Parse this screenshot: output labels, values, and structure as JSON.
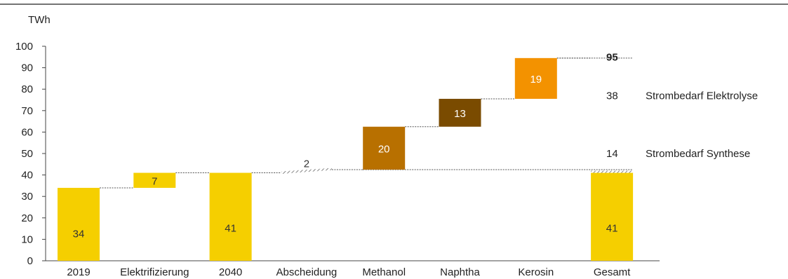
{
  "chart_data": {
    "type": "bar",
    "subtype": "waterfall",
    "title": "",
    "ylabel": "TWh",
    "xlabel": "",
    "ylim": [
      0,
      100
    ],
    "yticks": [
      0,
      10,
      20,
      30,
      40,
      50,
      60,
      70,
      80,
      90,
      100
    ],
    "grid": false,
    "categories": [
      "2019",
      "Elektrifizierung",
      "2040",
      "Abscheidung",
      "Methanol",
      "Naphtha",
      "Kerosin",
      "Gesamt"
    ],
    "bars": [
      {
        "category": "2019",
        "base": 0,
        "value": 34,
        "label": "34",
        "color": "#F5CF00",
        "label_color": "#333333"
      },
      {
        "category": "Elektrifizierung",
        "base": 34,
        "value": 7,
        "label": "7",
        "color": "#F5CF00",
        "label_color": "#333333"
      },
      {
        "category": "2040",
        "base": 0,
        "value": 41,
        "label": "41",
        "color": "#F5CF00",
        "label_color": "#333333"
      },
      {
        "category": "Abscheidung",
        "base": 41,
        "value": 2,
        "label": "2",
        "color": "hatched",
        "label_color": "#333333"
      },
      {
        "category": "Methanol",
        "base": 42.5,
        "value": 20,
        "label": "20",
        "color": "#B87000",
        "label_color": "#ffffff"
      },
      {
        "category": "Naphtha",
        "base": 62.5,
        "value": 13,
        "label": "13",
        "color": "#7A4B00",
        "label_color": "#ffffff"
      },
      {
        "category": "Kerosin",
        "base": 75.5,
        "value": 19,
        "label": "19",
        "color": "#F39200",
        "label_color": "#ffffff"
      },
      {
        "category": "Gesamt",
        "base": 0,
        "value": 41,
        "label": "41",
        "color": "#F5CF00",
        "label_color": "#333333",
        "hatch_top": 2
      }
    ],
    "side_annotations": [
      {
        "value": "95",
        "text": "",
        "bold": true,
        "y": 95
      },
      {
        "value": "38",
        "text": "Strombedarf Elektrolyse",
        "bold": false,
        "y": 77
      },
      {
        "value": "14",
        "text": "Strombedarf Synthese",
        "bold": false,
        "y": 50
      }
    ]
  }
}
